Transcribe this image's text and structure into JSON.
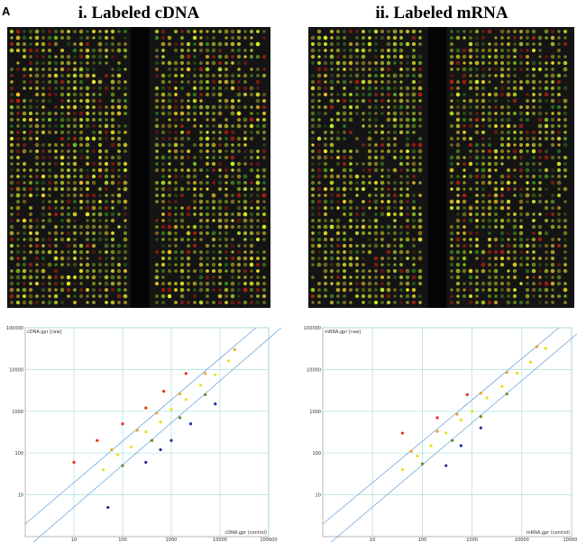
{
  "panel_label": "A",
  "chart_data": [
    {
      "type": "scatter",
      "title": "i. Labeled cDNA",
      "x_label": "cDNA.gpr (control)",
      "y_label": "cDNA.gpr [raw]",
      "xscale": "log",
      "yscale": "log",
      "grid": true,
      "xlim": [
        1,
        100000
      ],
      "ylim": [
        1,
        100000
      ],
      "xticks": [
        10,
        100,
        1000,
        10000,
        100000
      ],
      "yticks": [
        10,
        100,
        1000,
        10000,
        100000
      ],
      "x": [
        40,
        80,
        150,
        300,
        600,
        1000,
        2000,
        4000,
        8000,
        15000,
        60,
        200,
        500,
        1500,
        5000,
        20000,
        100,
        300,
        700,
        2000,
        30,
        10,
        100,
        400,
        1500,
        5000,
        600,
        1000,
        2500,
        300,
        50,
        8000
      ],
      "values": [
        40,
        90,
        140,
        320,
        550,
        1100,
        1900,
        4200,
        7500,
        16000,
        120,
        350,
        900,
        2600,
        8000,
        30000,
        500,
        1200,
        3000,
        8000,
        200,
        60,
        50,
        200,
        700,
        2500,
        120,
        200,
        500,
        60,
        5,
        1500
      ],
      "colors": [
        "#e8e020",
        "#e8e020",
        "#e8e020",
        "#e8e020",
        "#e8e020",
        "#e8e020",
        "#e8e020",
        "#e8e020",
        "#e8e020",
        "#e8e020",
        "#f5a020",
        "#f5a020",
        "#f5a020",
        "#f5a020",
        "#f5a020",
        "#f5a020",
        "#e83010",
        "#e83010",
        "#e83010",
        "#e83010",
        "#e83010",
        "#e83010",
        "#6a8a20",
        "#6a8a20",
        "#6a8a20",
        "#6a8a20",
        "#2030a0",
        "#2030a0",
        "#2030a0",
        "#2030a0",
        "#2030a0",
        "#2030a0"
      ]
    },
    {
      "type": "scatter",
      "title": "ii. Labeled mRNA",
      "x_label": "mRNA.gpr (control)",
      "y_label": "mRNA.gpr [raw]",
      "xscale": "log",
      "yscale": "log",
      "grid": true,
      "xlim": [
        1,
        100000
      ],
      "ylim": [
        1,
        100000
      ],
      "xticks": [
        10,
        100,
        1000,
        10000,
        100000
      ],
      "yticks": [
        10,
        100,
        1000,
        10000,
        100000
      ],
      "x": [
        40,
        80,
        150,
        300,
        600,
        1000,
        2000,
        4000,
        8000,
        15000,
        30000,
        60,
        200,
        500,
        1500,
        5000,
        20000,
        40,
        200,
        800,
        100,
        400,
        1500,
        5000,
        600,
        1500,
        300
      ],
      "values": [
        40,
        85,
        150,
        300,
        620,
        1000,
        2100,
        3900,
        8200,
        15000,
        32000,
        110,
        330,
        850,
        2700,
        8500,
        35000,
        300,
        700,
        2500,
        55,
        200,
        750,
        2600,
        150,
        400,
        50
      ],
      "colors": [
        "#e8e020",
        "#e8e020",
        "#e8e020",
        "#e8e020",
        "#e8e020",
        "#e8e020",
        "#e8e020",
        "#e8e020",
        "#e8e020",
        "#e8e020",
        "#e8e020",
        "#f5a020",
        "#f5a020",
        "#f5a020",
        "#f5a020",
        "#f5a020",
        "#f5a020",
        "#e83010",
        "#e83010",
        "#e83010",
        "#6a8a20",
        "#6a8a20",
        "#6a8a20",
        "#6a8a20",
        "#2030a0",
        "#2030a0",
        "#2030a0"
      ]
    }
  ]
}
